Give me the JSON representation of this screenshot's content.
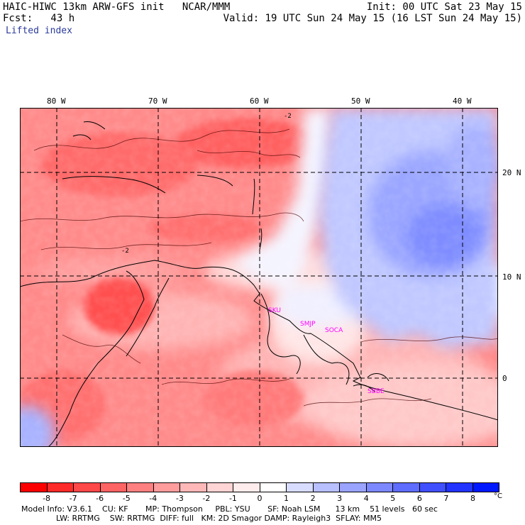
{
  "header": {
    "title_left": "HAIC-HIWC 13km ARW-GFS init   NCAR/MMM",
    "init": "Init: 00 UTC Sat 23 May 15",
    "fcst": "Fcst:   43 h",
    "valid": "Valid: 19 UTC Sun 24 May 15 (16 LST Sun 24 May 15)",
    "field": "Lifted index"
  },
  "map": {
    "lon_labels": [
      "80 W",
      "70 W",
      "60 W",
      "50 W",
      "40 W"
    ],
    "lat_labels": [
      "20 N",
      "10 N",
      "0"
    ],
    "stations": [
      "SKU",
      "SMJP",
      "SOCA",
      "SBBE"
    ],
    "station_color": "#ff00ff",
    "contour_label": "-2"
  },
  "colorbar": {
    "ticks": [
      "-8",
      "-7",
      "-6",
      "-5",
      "-4",
      "-3",
      "-2",
      "-1",
      "0",
      "1",
      "2",
      "3",
      "4",
      "5",
      "6",
      "7",
      "8"
    ],
    "unit": "°C",
    "colors": [
      "#ff0000",
      "#ff2a2a",
      "#ff4848",
      "#ff6464",
      "#ff8080",
      "#ff9c9c",
      "#ffb8b8",
      "#ffd4d4",
      "#ffecec",
      "#ffffff",
      "#d8dcff",
      "#b8c0ff",
      "#9aa4ff",
      "#7c88ff",
      "#5e6cff",
      "#4050ff",
      "#2234ff",
      "#0018ff"
    ]
  },
  "footer": {
    "line1": "Model Info: V3.6.1    CU: KF       MP: Thompson     PBL: YSU       SF: Noah LSM      13 km    51 levels   60 sec",
    "line2": "              LW: RRTMG    SW: RRTMG  DIFF: full   KM: 2D Smagor DAMP: Rayleigh3  SFLAY: MM5"
  }
}
